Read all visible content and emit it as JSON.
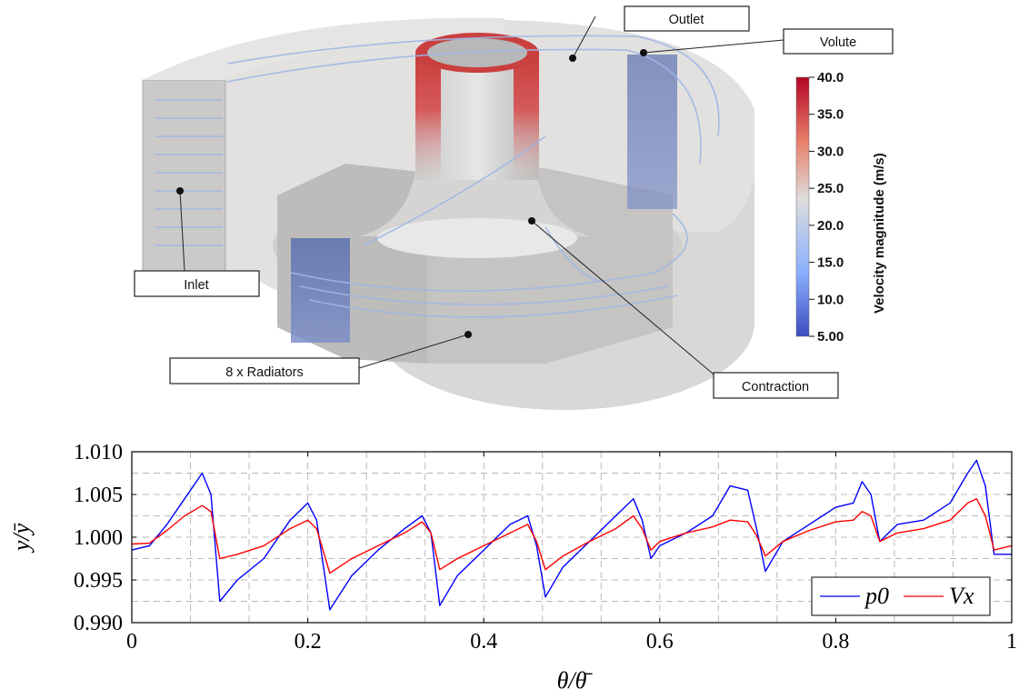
{
  "render": {
    "callouts": {
      "outlet": "Outlet",
      "volute": "Volute",
      "inlet": "Inlet",
      "radiators": "8 x Radiators",
      "contraction": "Contraction"
    },
    "colorbar": {
      "title": "Velocity magnitude (m/s)",
      "ticks": [
        "40.0",
        "35.0",
        "30.0",
        "25.0",
        "20.0",
        "15.0",
        "10.0",
        "5.00"
      ],
      "colors": {
        "high": "#b40426",
        "mid": "#dddcdc",
        "low": "#3b4cc0"
      }
    }
  },
  "chart_data": {
    "type": "line",
    "xlabel": "θ/θ̄",
    "ylabel": "y/ȳ",
    "xlim": [
      0,
      1
    ],
    "ylim": [
      0.99,
      1.01
    ],
    "xticks": [
      "0",
      "0.2",
      "0.4",
      "0.6",
      "0.8",
      "1"
    ],
    "yticks": [
      "0.990",
      "0.995",
      "1.000",
      "1.005",
      "1.010"
    ],
    "grid": true,
    "legend_position": "bottom-right",
    "series": [
      {
        "name": "p0",
        "color": "#0000ff",
        "points": [
          [
            0,
            0.9985
          ],
          [
            0.02,
            0.999
          ],
          [
            0.04,
            1.0015
          ],
          [
            0.06,
            1.0045
          ],
          [
            0.08,
            1.0075
          ],
          [
            0.09,
            1.005
          ],
          [
            0.1,
            0.9925
          ],
          [
            0.12,
            0.995
          ],
          [
            0.15,
            0.9975
          ],
          [
            0.18,
            1.002
          ],
          [
            0.2,
            1.004
          ],
          [
            0.21,
            1.002
          ],
          [
            0.225,
            0.9915
          ],
          [
            0.25,
            0.9955
          ],
          [
            0.28,
            0.9985
          ],
          [
            0.31,
            1.001
          ],
          [
            0.33,
            1.0025
          ],
          [
            0.34,
            1.0005
          ],
          [
            0.35,
            0.992
          ],
          [
            0.37,
            0.9955
          ],
          [
            0.4,
            0.9985
          ],
          [
            0.43,
            1.0015
          ],
          [
            0.45,
            1.0025
          ],
          [
            0.46,
            0.999
          ],
          [
            0.47,
            0.993
          ],
          [
            0.49,
            0.9965
          ],
          [
            0.52,
            0.9995
          ],
          [
            0.55,
            1.0025
          ],
          [
            0.57,
            1.0045
          ],
          [
            0.58,
            1.002
          ],
          [
            0.59,
            0.9975
          ],
          [
            0.6,
            0.999
          ],
          [
            0.63,
            1.0005
          ],
          [
            0.66,
            1.0025
          ],
          [
            0.68,
            1.006
          ],
          [
            0.7,
            1.0055
          ],
          [
            0.71,
            1.001
          ],
          [
            0.72,
            0.996
          ],
          [
            0.74,
            0.9995
          ],
          [
            0.77,
            1.0015
          ],
          [
            0.8,
            1.0035
          ],
          [
            0.82,
            1.004
          ],
          [
            0.83,
            1.0065
          ],
          [
            0.84,
            1.005
          ],
          [
            0.85,
            0.9995
          ],
          [
            0.87,
            1.0015
          ],
          [
            0.9,
            1.002
          ],
          [
            0.93,
            1.004
          ],
          [
            0.95,
            1.0075
          ],
          [
            0.96,
            1.009
          ],
          [
            0.97,
            1.006
          ],
          [
            0.98,
            0.998
          ],
          [
            1.0,
            0.998
          ]
        ]
      },
      {
        "name": "Vx",
        "color": "#ff0000",
        "points": [
          [
            0,
            0.9992
          ],
          [
            0.02,
            0.9993
          ],
          [
            0.04,
            1.0008
          ],
          [
            0.06,
            1.0025
          ],
          [
            0.08,
            1.0037
          ],
          [
            0.09,
            1.003
          ],
          [
            0.1,
            0.9975
          ],
          [
            0.12,
            0.998
          ],
          [
            0.15,
            0.999
          ],
          [
            0.18,
            1.001
          ],
          [
            0.2,
            1.002
          ],
          [
            0.21,
            1.001
          ],
          [
            0.225,
            0.9958
          ],
          [
            0.25,
            0.9975
          ],
          [
            0.28,
            0.999
          ],
          [
            0.31,
            1.0005
          ],
          [
            0.33,
            1.0018
          ],
          [
            0.34,
            1.0005
          ],
          [
            0.35,
            0.9962
          ],
          [
            0.37,
            0.9975
          ],
          [
            0.4,
            0.999
          ],
          [
            0.43,
            1.0005
          ],
          [
            0.45,
            1.0015
          ],
          [
            0.46,
            0.9995
          ],
          [
            0.47,
            0.9962
          ],
          [
            0.49,
            0.9978
          ],
          [
            0.52,
            0.9995
          ],
          [
            0.55,
            1.001
          ],
          [
            0.57,
            1.0025
          ],
          [
            0.58,
            1.001
          ],
          [
            0.59,
            0.9985
          ],
          [
            0.6,
            0.9995
          ],
          [
            0.63,
            1.0005
          ],
          [
            0.66,
            1.0012
          ],
          [
            0.68,
            1.002
          ],
          [
            0.7,
            1.0018
          ],
          [
            0.71,
            1.0002
          ],
          [
            0.72,
            0.9978
          ],
          [
            0.74,
            0.9995
          ],
          [
            0.77,
            1.0008
          ],
          [
            0.8,
            1.0018
          ],
          [
            0.82,
            1.002
          ],
          [
            0.83,
            1.003
          ],
          [
            0.84,
            1.0025
          ],
          [
            0.85,
            0.9995
          ],
          [
            0.87,
            1.0005
          ],
          [
            0.9,
            1.001
          ],
          [
            0.93,
            1.002
          ],
          [
            0.95,
            1.004
          ],
          [
            0.96,
            1.0045
          ],
          [
            0.97,
            1.0025
          ],
          [
            0.98,
            0.9985
          ],
          [
            1.0,
            0.999
          ]
        ]
      }
    ]
  }
}
